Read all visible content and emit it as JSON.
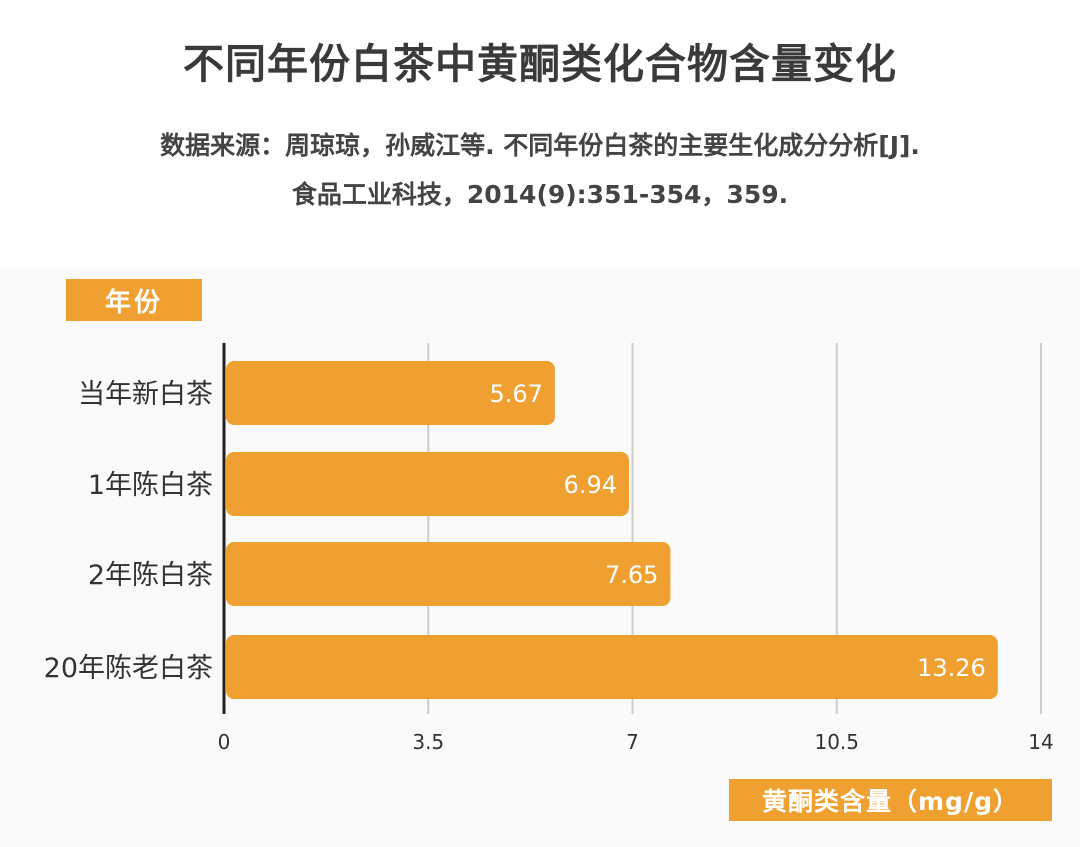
{
  "title": "不同年份白茶中黄酮类化合物含量变化",
  "source": {
    "line1": "数据来源：周琼琼，孙威江等. 不同年份白茶的主要生化成分分析[J].",
    "line2": "食品工业科技，2014(9):351-354，359."
  },
  "colors": {
    "bar": "#f0a030",
    "tag": "#f0a030",
    "grid": "#cccccc",
    "axis": "#222222"
  },
  "chart_data": {
    "type": "bar",
    "orientation": "horizontal",
    "categories": [
      "当年新白茶",
      "1年陈白茶",
      "2年陈白茶",
      "20年陈老白茶"
    ],
    "values": [
      5.67,
      6.94,
      7.65,
      13.26
    ],
    "value_labels": [
      "5.67",
      "6.94",
      "7.65",
      "13.26"
    ],
    "xlabel": "黄酮类含量（mg/g）",
    "ylabel": "年份",
    "xlim": [
      0,
      14
    ],
    "xticks": [
      0,
      3.5,
      7,
      10.5,
      14
    ],
    "xtick_labels": [
      "0",
      "3.5",
      "7",
      "10.5",
      "14"
    ],
    "grid": true
  }
}
